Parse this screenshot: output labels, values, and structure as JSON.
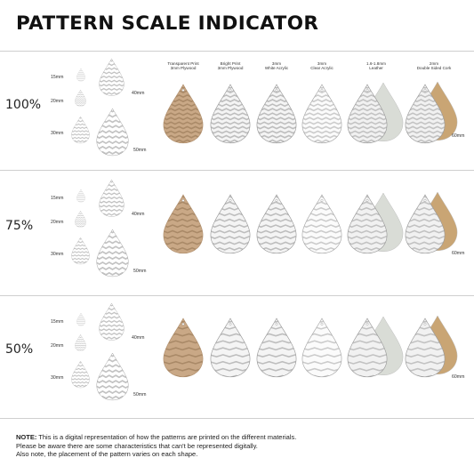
{
  "title": "PATTERN SCALE INDICATOR",
  "materials": [
    {
      "line1": "Transparent Print",
      "line2": "3mm Plywood",
      "kind": "wood",
      "color": "#caa885"
    },
    {
      "line1": "Bright Print",
      "line2": "3mm Plywood",
      "kind": "white",
      "color": "#f3f3f3"
    },
    {
      "line1": "3mm",
      "line2": "White Acrylic",
      "kind": "white",
      "color": "#f3f3f3"
    },
    {
      "line1": "3mm",
      "line2": "Clear Acrylic",
      "kind": "clear",
      "color": "#fafafa"
    },
    {
      "line1": "1.6-1.8mm",
      "line2": "Leather",
      "kind": "leather",
      "color": "#e1e4df"
    },
    {
      "line1": "2mm",
      "line2": "Double Sided Cork",
      "kind": "cork",
      "color": "#d5b58c"
    }
  ],
  "sizes": [
    "15mm",
    "20mm",
    "30mm",
    "40mm",
    "50mm"
  ],
  "material_size": "60mm",
  "rows": [
    {
      "scale": "100%"
    },
    {
      "scale": "75%"
    },
    {
      "scale": "50%"
    }
  ],
  "colors": {
    "chevron": "#c3c3c3",
    "outline": "#9a9a9a",
    "separator": "#cfcfcf"
  },
  "note": {
    "label": "NOTE:",
    "line1": " This is a digital representation of how the patterns are printed on the different materials.",
    "line2": "Please be aware there are some characteristics that can't be represented digitally.",
    "line3": "Also note, the placement of the pattern varies on each shape."
  }
}
